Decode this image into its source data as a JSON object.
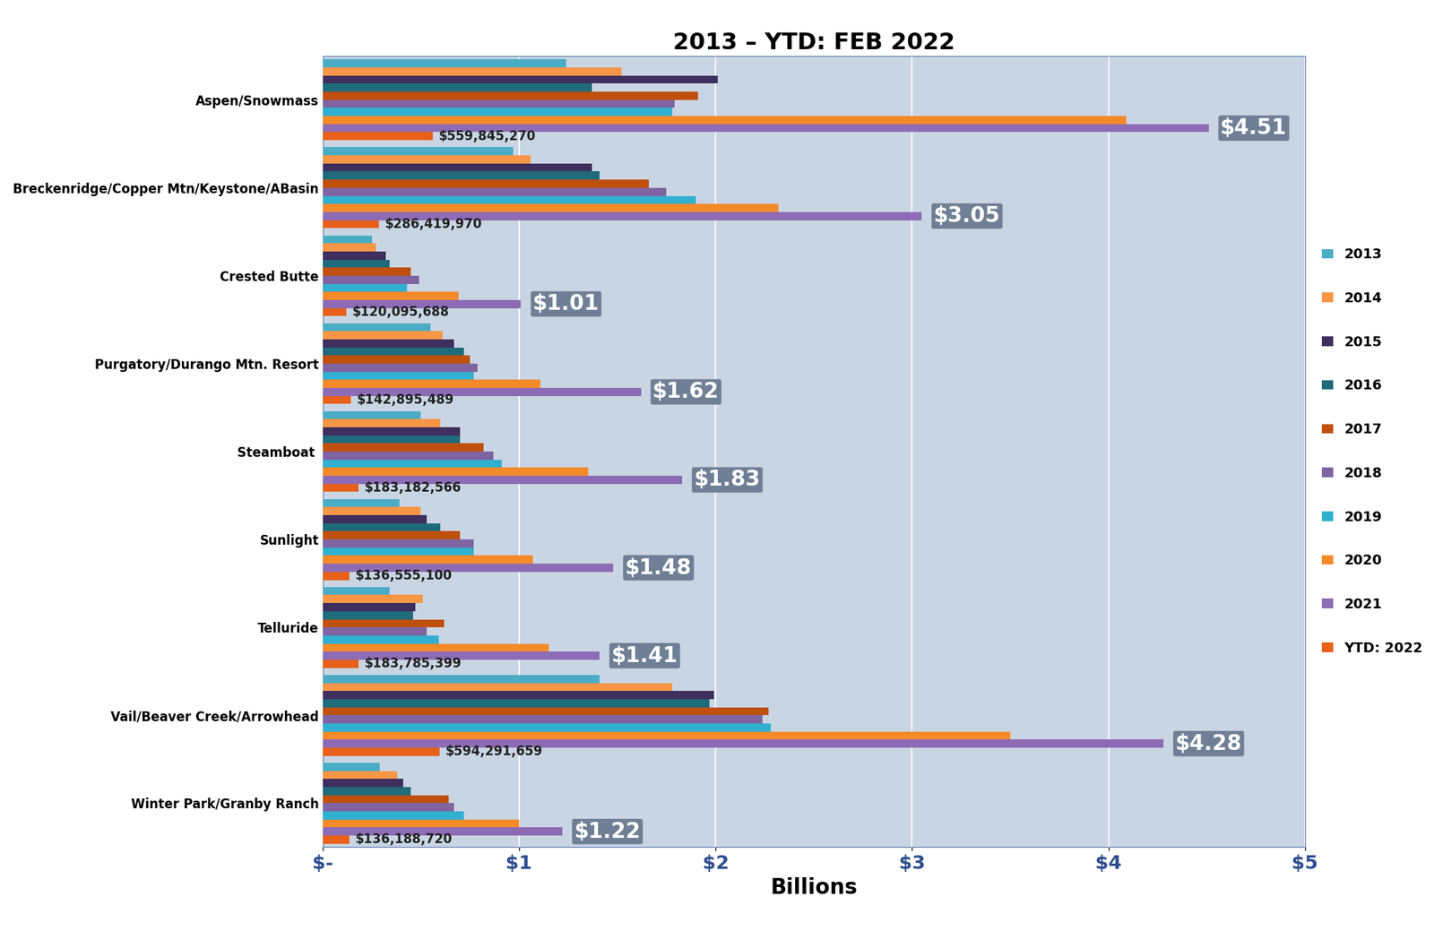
{
  "chart_data": {
    "type": "bar",
    "orientation": "horizontal",
    "title": "2013 – YTD: FEB 2022",
    "x_label": "Billions",
    "categories": [
      "Aspen/Snowmass",
      "Breckenridge/Copper Mtn/Keystone/ABasin",
      "Crested Butte",
      "Purgatory/Durango Mtn. Resort",
      "Steamboat ",
      "Sunlight",
      "Telluride",
      "Vail/Beaver Creek/Arrowhead",
      "Winter Park/Granby Ranch"
    ],
    "series": [
      {
        "name": "2013",
        "color": "#4bacc6",
        "values": [
          1.24,
          0.97,
          0.25,
          0.55,
          0.5,
          0.39,
          0.34,
          1.41,
          0.29
        ]
      },
      {
        "name": "2014",
        "color": "#f79646",
        "values": [
          1.52,
          1.06,
          0.27,
          0.61,
          0.6,
          0.5,
          0.51,
          1.78,
          0.38
        ]
      },
      {
        "name": "2015",
        "color": "#3f2f5e",
        "values": [
          2.01,
          1.37,
          0.32,
          0.67,
          0.7,
          0.53,
          0.47,
          1.99,
          0.41
        ]
      },
      {
        "name": "2016",
        "color": "#1f6b7a",
        "values": [
          1.37,
          1.41,
          0.34,
          0.72,
          0.7,
          0.6,
          0.46,
          1.97,
          0.45
        ]
      },
      {
        "name": "2017",
        "color": "#c0500f",
        "values": [
          1.91,
          1.66,
          0.45,
          0.75,
          0.82,
          0.7,
          0.62,
          2.27,
          0.64
        ]
      },
      {
        "name": "2018",
        "color": "#8064a2",
        "values": [
          1.79,
          1.75,
          0.49,
          0.79,
          0.87,
          0.77,
          0.53,
          2.24,
          0.67
        ]
      },
      {
        "name": "2019",
        "color": "#31b0d0",
        "values": [
          1.78,
          1.9,
          0.43,
          0.77,
          0.91,
          0.77,
          0.59,
          2.28,
          0.72
        ]
      },
      {
        "name": "2020",
        "color": "#f58a2a",
        "values": [
          4.09,
          2.32,
          0.69,
          1.11,
          1.35,
          1.07,
          1.15,
          3.5,
          1.0
        ]
      },
      {
        "name": "2021",
        "color": "#8e6bb5",
        "values": [
          4.51,
          3.05,
          1.01,
          1.62,
          1.83,
          1.48,
          1.41,
          4.28,
          1.22
        ],
        "value_labels": [
          "$4.51",
          "$3.05",
          "$1.01",
          "$1.62",
          "$1.83",
          "$1.48",
          "$1.41",
          "$4.28",
          "$1.22"
        ]
      },
      {
        "name": "YTD: 2022",
        "color": "#e8611a",
        "values": [
          0.55984527,
          0.28641997,
          0.120095688,
          0.142895489,
          0.183182566,
          0.1365551,
          0.183785399,
          0.594291659,
          0.13618872
        ],
        "value_labels": [
          "$559,845,270",
          "$286,419,970",
          "$120,095,688",
          "$142,895,489",
          "$183,182,566",
          "$136,555,100",
          "$183,785,399",
          "$594,291,659",
          "$136,188,720"
        ]
      }
    ],
    "xlim": [
      0,
      5
    ],
    "xticks": [
      {
        "value": 0,
        "label": "$-"
      },
      {
        "value": 1,
        "label": "$1"
      },
      {
        "value": 2,
        "label": "$2"
      },
      {
        "value": 3,
        "label": "$3"
      },
      {
        "value": 4,
        "label": "$4"
      },
      {
        "value": 5,
        "label": "$5"
      }
    ],
    "grid": true,
    "legend": "right",
    "data_labels": true
  }
}
